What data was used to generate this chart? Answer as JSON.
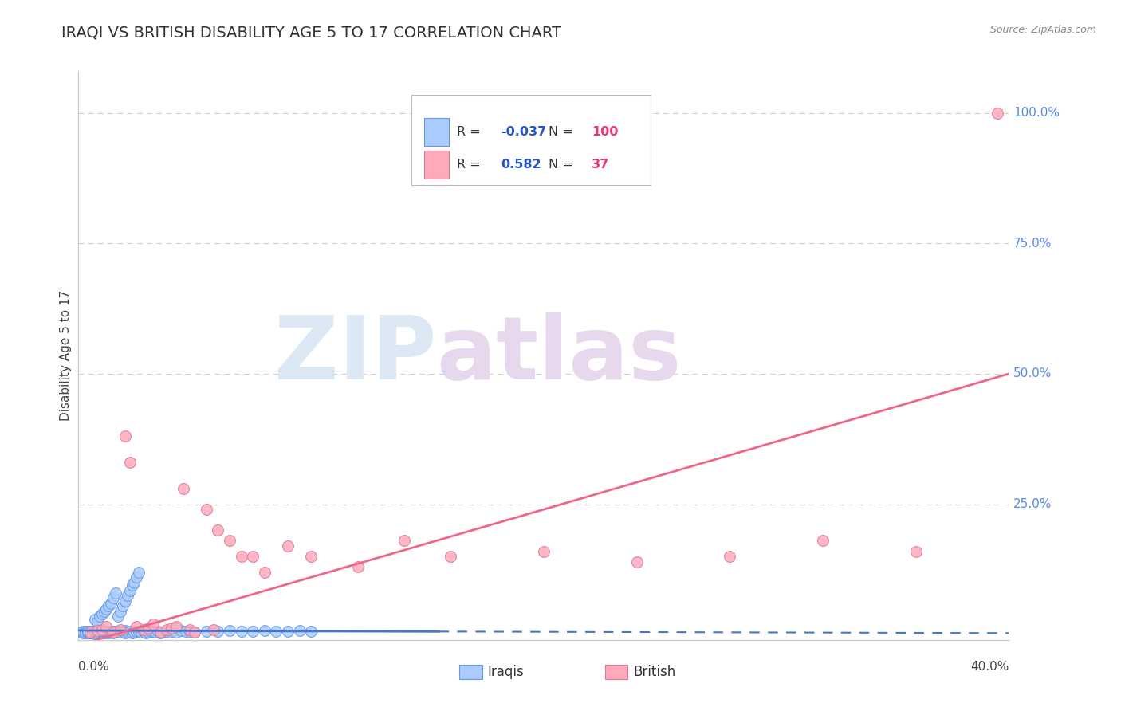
{
  "title": "IRAQI VS BRITISH DISABILITY AGE 5 TO 17 CORRELATION CHART",
  "source": "Source: ZipAtlas.com",
  "ylabel": "Disability Age 5 to 17",
  "xlim": [
    0.0,
    0.4
  ],
  "ylim": [
    -0.01,
    1.08
  ],
  "title_color": "#333333",
  "title_fontsize": 14,
  "source_color": "#888888",
  "axis_color": "#cccccc",
  "grid_color": "#cccccc",
  "right_tick_color": "#5588ee",
  "iraqi_color": "#aaccff",
  "iraqi_edge_color": "#6699dd",
  "british_color": "#ffaabb",
  "british_edge_color": "#dd7799",
  "iraqi_line_color": "#4477cc",
  "british_line_color": "#ee6688",
  "legend_R_color": "#2255cc",
  "legend_N_color": "#ee3377",
  "watermark_zip_color": "#dde8f5",
  "watermark_atlas_color": "#e8d8ee",
  "iraqi_x": [
    0.001,
    0.002,
    0.002,
    0.003,
    0.003,
    0.003,
    0.003,
    0.004,
    0.004,
    0.004,
    0.005,
    0.005,
    0.005,
    0.006,
    0.006,
    0.006,
    0.006,
    0.007,
    0.007,
    0.007,
    0.008,
    0.008,
    0.008,
    0.009,
    0.009,
    0.009,
    0.01,
    0.01,
    0.01,
    0.01,
    0.011,
    0.011,
    0.012,
    0.012,
    0.013,
    0.013,
    0.014,
    0.014,
    0.015,
    0.015,
    0.016,
    0.016,
    0.017,
    0.018,
    0.019,
    0.02,
    0.02,
    0.021,
    0.022,
    0.023,
    0.024,
    0.025,
    0.026,
    0.027,
    0.028,
    0.029,
    0.03,
    0.031,
    0.032,
    0.033,
    0.034,
    0.035,
    0.036,
    0.038,
    0.04,
    0.042,
    0.044,
    0.046,
    0.048,
    0.05,
    0.055,
    0.06,
    0.065,
    0.07,
    0.075,
    0.08,
    0.085,
    0.09,
    0.095,
    0.1,
    0.007,
    0.008,
    0.009,
    0.01,
    0.011,
    0.012,
    0.013,
    0.014,
    0.015,
    0.016,
    0.017,
    0.018,
    0.019,
    0.02,
    0.021,
    0.022,
    0.023,
    0.024,
    0.025,
    0.026
  ],
  "iraqi_y": [
    0.005,
    0.004,
    0.006,
    0.003,
    0.005,
    0.007,
    0.004,
    0.003,
    0.005,
    0.006,
    0.004,
    0.006,
    0.003,
    0.005,
    0.007,
    0.004,
    0.003,
    0.005,
    0.006,
    0.008,
    0.004,
    0.006,
    0.003,
    0.005,
    0.007,
    0.004,
    0.003,
    0.005,
    0.006,
    0.008,
    0.004,
    0.006,
    0.005,
    0.007,
    0.004,
    0.006,
    0.005,
    0.007,
    0.004,
    0.006,
    0.005,
    0.007,
    0.006,
    0.005,
    0.007,
    0.004,
    0.008,
    0.005,
    0.006,
    0.004,
    0.005,
    0.006,
    0.007,
    0.005,
    0.006,
    0.004,
    0.005,
    0.006,
    0.007,
    0.005,
    0.006,
    0.004,
    0.005,
    0.006,
    0.007,
    0.005,
    0.008,
    0.006,
    0.007,
    0.005,
    0.006,
    0.007,
    0.008,
    0.006,
    0.007,
    0.008,
    0.007,
    0.006,
    0.008,
    0.007,
    0.03,
    0.025,
    0.035,
    0.04,
    0.045,
    0.05,
    0.055,
    0.06,
    0.07,
    0.08,
    0.035,
    0.045,
    0.055,
    0.065,
    0.075,
    0.085,
    0.095,
    0.1,
    0.11,
    0.12
  ],
  "british_x": [
    0.005,
    0.008,
    0.01,
    0.012,
    0.015,
    0.018,
    0.02,
    0.022,
    0.025,
    0.028,
    0.03,
    0.032,
    0.035,
    0.038,
    0.04,
    0.042,
    0.045,
    0.048,
    0.05,
    0.055,
    0.058,
    0.06,
    0.065,
    0.07,
    0.075,
    0.08,
    0.09,
    0.1,
    0.12,
    0.14,
    0.16,
    0.2,
    0.24,
    0.28,
    0.32,
    0.36,
    0.395
  ],
  "british_y": [
    0.005,
    0.008,
    0.01,
    0.015,
    0.005,
    0.01,
    0.38,
    0.33,
    0.015,
    0.01,
    0.012,
    0.02,
    0.005,
    0.01,
    0.012,
    0.015,
    0.28,
    0.01,
    0.005,
    0.24,
    0.01,
    0.2,
    0.18,
    0.15,
    0.15,
    0.12,
    0.17,
    0.15,
    0.13,
    0.18,
    0.15,
    0.16,
    0.14,
    0.15,
    0.18,
    0.16,
    1.0
  ],
  "iraqi_line_x0": 0.0,
  "iraqi_line_x_solid_end": 0.155,
  "iraqi_line_x1": 0.4,
  "iraqi_line_y0": 0.008,
  "iraqi_line_y_solid_end": 0.006,
  "iraqi_line_y1": 0.003,
  "british_line_x0": 0.0,
  "british_line_x1": 0.4,
  "british_line_y0": -0.02,
  "british_line_y1": 0.5
}
